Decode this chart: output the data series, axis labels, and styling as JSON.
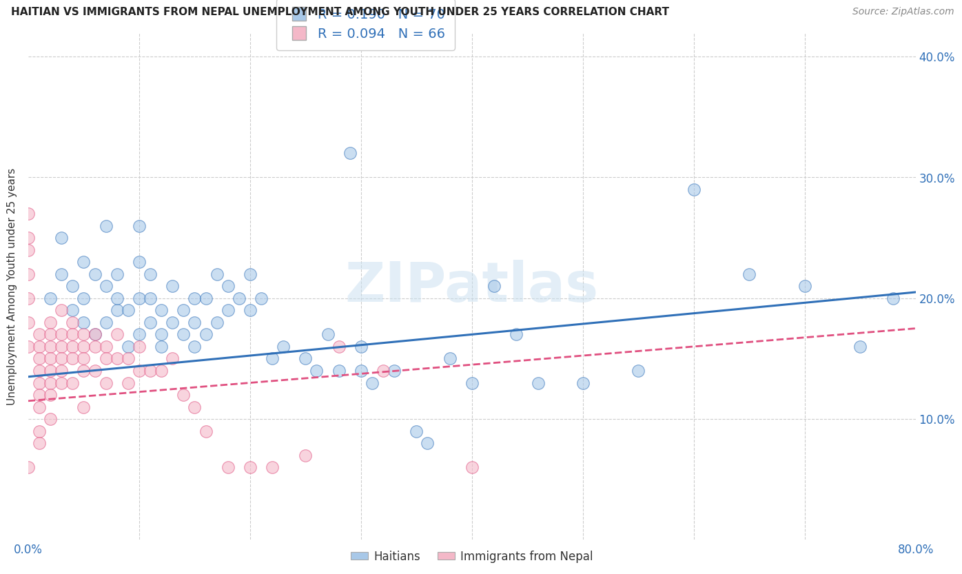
{
  "title": "HAITIAN VS IMMIGRANTS FROM NEPAL UNEMPLOYMENT AMONG YOUTH UNDER 25 YEARS CORRELATION CHART",
  "source": "Source: ZipAtlas.com",
  "ylabel": "Unemployment Among Youth under 25 years",
  "legend_label1": "Haitians",
  "legend_label2": "Immigrants from Nepal",
  "R1": 0.19,
  "N1": 70,
  "R2": 0.094,
  "N2": 66,
  "color_blue": "#a8c8e8",
  "color_pink": "#f4b8c8",
  "color_blue_line": "#3070b8",
  "color_pink_line": "#e05080",
  "background_color": "#ffffff",
  "watermark": "ZIPatlas",
  "xlim": [
    0.0,
    0.8
  ],
  "ylim": [
    0.0,
    0.42
  ],
  "blue_scatter_x": [
    0.02,
    0.03,
    0.03,
    0.04,
    0.04,
    0.05,
    0.05,
    0.05,
    0.06,
    0.06,
    0.07,
    0.07,
    0.07,
    0.08,
    0.08,
    0.08,
    0.09,
    0.09,
    0.1,
    0.1,
    0.1,
    0.1,
    0.11,
    0.11,
    0.11,
    0.12,
    0.12,
    0.12,
    0.13,
    0.13,
    0.14,
    0.14,
    0.15,
    0.15,
    0.15,
    0.16,
    0.16,
    0.17,
    0.17,
    0.18,
    0.18,
    0.19,
    0.2,
    0.2,
    0.21,
    0.22,
    0.23,
    0.25,
    0.26,
    0.27,
    0.28,
    0.29,
    0.3,
    0.3,
    0.31,
    0.33,
    0.35,
    0.36,
    0.38,
    0.4,
    0.42,
    0.44,
    0.46,
    0.5,
    0.55,
    0.6,
    0.65,
    0.7,
    0.75,
    0.78
  ],
  "blue_scatter_y": [
    0.2,
    0.22,
    0.25,
    0.19,
    0.21,
    0.18,
    0.2,
    0.23,
    0.17,
    0.22,
    0.18,
    0.21,
    0.26,
    0.19,
    0.22,
    0.2,
    0.16,
    0.19,
    0.17,
    0.2,
    0.23,
    0.26,
    0.18,
    0.2,
    0.22,
    0.17,
    0.19,
    0.16,
    0.18,
    0.21,
    0.17,
    0.19,
    0.16,
    0.18,
    0.2,
    0.17,
    0.2,
    0.18,
    0.22,
    0.19,
    0.21,
    0.2,
    0.19,
    0.22,
    0.2,
    0.15,
    0.16,
    0.15,
    0.14,
    0.17,
    0.14,
    0.32,
    0.16,
    0.14,
    0.13,
    0.14,
    0.09,
    0.08,
    0.15,
    0.13,
    0.21,
    0.17,
    0.13,
    0.13,
    0.14,
    0.29,
    0.22,
    0.21,
    0.16,
    0.2
  ],
  "pink_scatter_x": [
    0.0,
    0.0,
    0.0,
    0.0,
    0.0,
    0.0,
    0.0,
    0.0,
    0.01,
    0.01,
    0.01,
    0.01,
    0.01,
    0.01,
    0.01,
    0.01,
    0.01,
    0.02,
    0.02,
    0.02,
    0.02,
    0.02,
    0.02,
    0.02,
    0.02,
    0.03,
    0.03,
    0.03,
    0.03,
    0.03,
    0.03,
    0.04,
    0.04,
    0.04,
    0.04,
    0.04,
    0.05,
    0.05,
    0.05,
    0.05,
    0.05,
    0.06,
    0.06,
    0.06,
    0.07,
    0.07,
    0.07,
    0.08,
    0.08,
    0.09,
    0.09,
    0.1,
    0.1,
    0.11,
    0.12,
    0.13,
    0.14,
    0.15,
    0.16,
    0.18,
    0.2,
    0.22,
    0.25,
    0.28,
    0.32,
    0.4
  ],
  "pink_scatter_y": [
    0.27,
    0.25,
    0.24,
    0.22,
    0.2,
    0.18,
    0.16,
    0.06,
    0.17,
    0.16,
    0.15,
    0.14,
    0.13,
    0.12,
    0.11,
    0.09,
    0.08,
    0.18,
    0.17,
    0.16,
    0.15,
    0.14,
    0.13,
    0.12,
    0.1,
    0.19,
    0.17,
    0.16,
    0.15,
    0.14,
    0.13,
    0.18,
    0.17,
    0.16,
    0.15,
    0.13,
    0.17,
    0.16,
    0.15,
    0.14,
    0.11,
    0.17,
    0.16,
    0.14,
    0.16,
    0.15,
    0.13,
    0.17,
    0.15,
    0.15,
    0.13,
    0.16,
    0.14,
    0.14,
    0.14,
    0.15,
    0.12,
    0.11,
    0.09,
    0.06,
    0.06,
    0.06,
    0.07,
    0.16,
    0.14,
    0.06
  ]
}
